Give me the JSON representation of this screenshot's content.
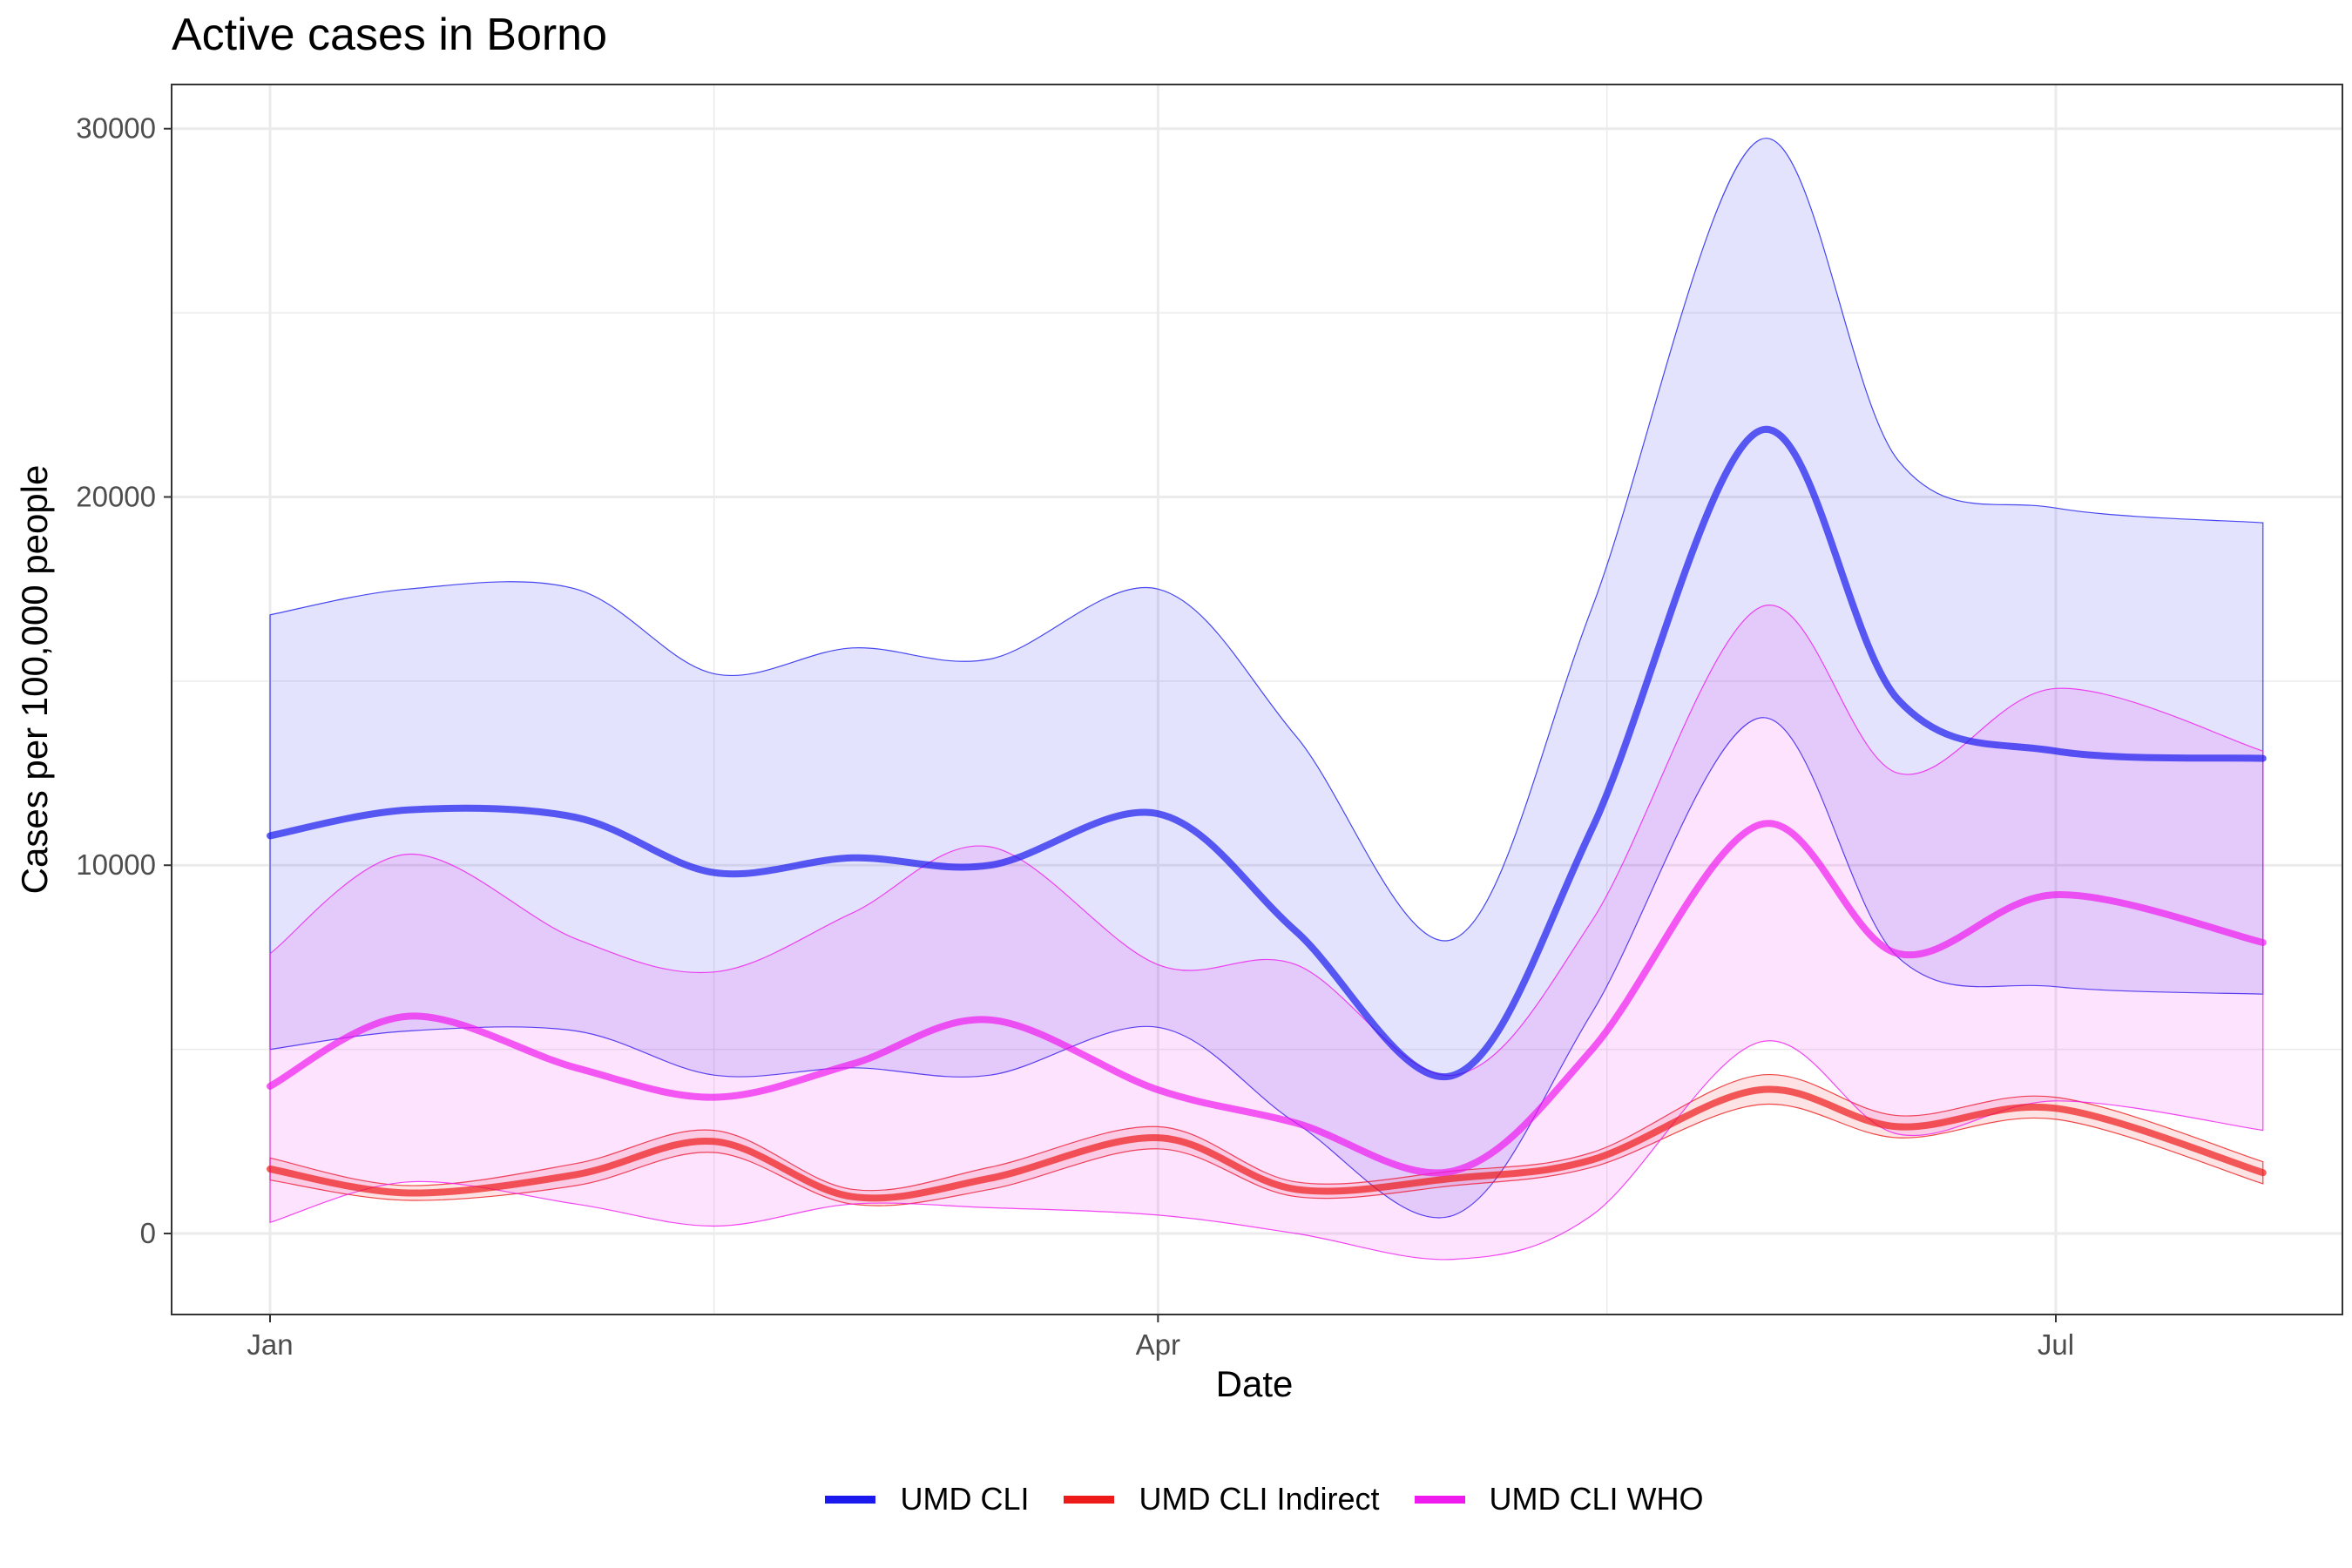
{
  "chart_data": {
    "type": "line",
    "title": "Active cases in Borno",
    "xlabel": "Date",
    "ylabel": "Cases per 100,000 people",
    "x_ticks": [
      "Jan",
      "Apr",
      "Jul"
    ],
    "y_ticks": [
      0,
      10000,
      20000,
      30000
    ],
    "ylim": [
      -2200,
      31200
    ],
    "grid": true,
    "legend_position": "bottom",
    "x_dates": [
      "Jan 1",
      "Jan 15",
      "Feb 1",
      "Feb 15",
      "Mar 1",
      "Mar 15",
      "Apr 1",
      "Apr 15",
      "May 1",
      "May 15",
      "Jun 1",
      "Jun 15",
      "Jul 1",
      "Jul 22"
    ],
    "series": [
      {
        "name": "UMD CLI",
        "color": "#1a1aee",
        "values": [
          10800,
          11500,
          11300,
          9800,
          10200,
          10000,
          11400,
          8200,
          4300,
          11000,
          21800,
          14500,
          13100,
          12900
        ],
        "lower": [
          5000,
          5500,
          5500,
          4300,
          4500,
          4300,
          5600,
          3000,
          500,
          6000,
          14000,
          7500,
          6700,
          6500
        ],
        "upper": [
          16800,
          17500,
          17500,
          15200,
          15900,
          15600,
          17500,
          13500,
          8000,
          17000,
          29700,
          21000,
          19700,
          19300
        ]
      },
      {
        "name": "UMD CLI Indirect",
        "color": "#ee1a1a",
        "values": [
          1750,
          1100,
          1600,
          2500,
          1000,
          1500,
          2600,
          1200,
          1500,
          2000,
          3900,
          2900,
          3400,
          1650
        ],
        "lower": [
          1450,
          900,
          1300,
          2200,
          800,
          1200,
          2300,
          1000,
          1300,
          1800,
          3500,
          2600,
          3100,
          1350
        ],
        "upper": [
          2050,
          1300,
          1900,
          2800,
          1200,
          1800,
          2900,
          1400,
          1700,
          2200,
          4300,
          3200,
          3700,
          1950
        ]
      },
      {
        "name": "UMD CLI WHO",
        "color": "#ee1aee",
        "values": [
          4000,
          5900,
          4500,
          3700,
          4600,
          5800,
          3900,
          3000,
          1700,
          5000,
          11100,
          7600,
          9200,
          7900
        ],
        "lower": [
          300,
          1400,
          800,
          200,
          800,
          700,
          500,
          0,
          -700,
          500,
          5200,
          2700,
          3600,
          2800
        ],
        "upper": [
          7600,
          10300,
          8000,
          7100,
          8700,
          10500,
          7300,
          7300,
          4300,
          8500,
          17000,
          12500,
          14800,
          13100
        ]
      }
    ]
  }
}
